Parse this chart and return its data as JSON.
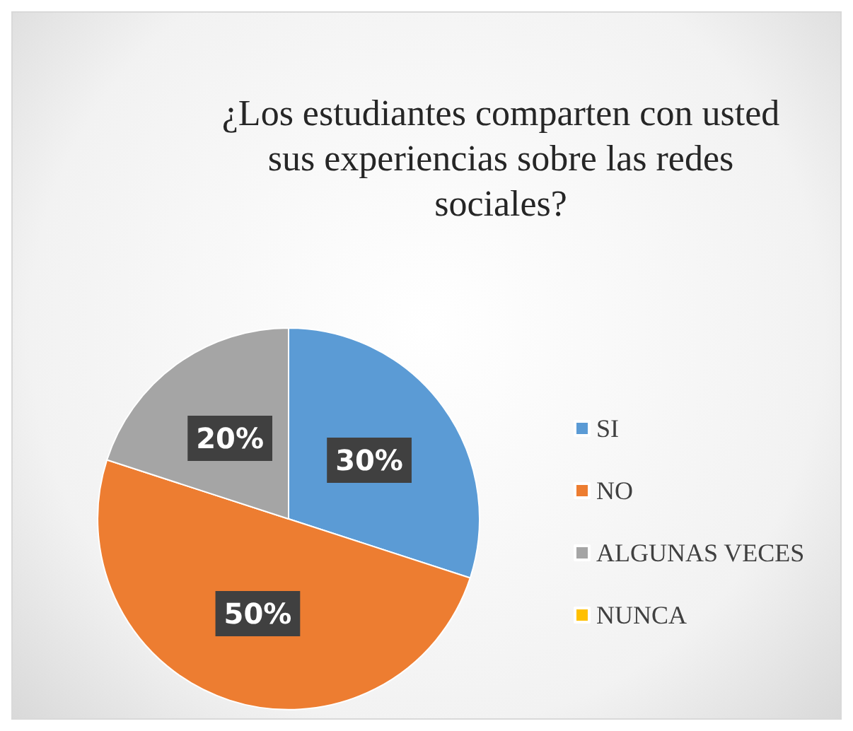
{
  "chart_data": {
    "type": "pie",
    "title": "¿Los estudiantes comparten con usted sus experiencias sobre las redes sociales?",
    "categories": [
      "SI",
      "NO",
      "ALGUNAS VECES",
      "NUNCA"
    ],
    "values": [
      30,
      50,
      20,
      0
    ],
    "colors": [
      "#5b9bd5",
      "#ed7d31",
      "#a5a5a5",
      "#ffc000"
    ],
    "value_labels": [
      "30%",
      "50%",
      "20%",
      null
    ],
    "legend": "right"
  }
}
